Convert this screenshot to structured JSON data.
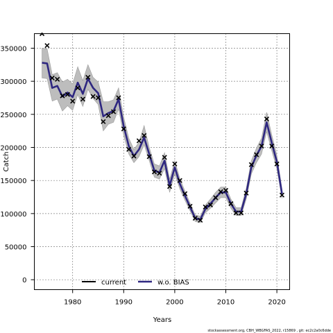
{
  "chart_data": {
    "type": "line",
    "xlabel": "Years",
    "ylabel": "Catch",
    "xlim": [
      1972.5,
      2022.5
    ],
    "ylim": [
      -15000,
      372000
    ],
    "xticks": [
      1980,
      1990,
      2000,
      2010,
      2020
    ],
    "yticks": [
      0,
      50000,
      100000,
      150000,
      200000,
      250000,
      300000,
      350000
    ],
    "grid": true,
    "legend_position": "bottom",
    "legend": [
      {
        "label": "current",
        "color": "#000000"
      },
      {
        "label": "w.o. BIAS",
        "color": "#2e2780"
      }
    ],
    "x": [
      1974,
      1975,
      1976,
      1977,
      1978,
      1979,
      1980,
      1981,
      1982,
      1983,
      1984,
      1985,
      1986,
      1987,
      1988,
      1989,
      1990,
      1991,
      1992,
      1993,
      1994,
      1995,
      1996,
      1997,
      1998,
      1999,
      2000,
      2001,
      2002,
      2003,
      2004,
      2005,
      2006,
      2007,
      2008,
      2009,
      2010,
      2011,
      2012,
      2013,
      2014,
      2015,
      2016,
      2017,
      2018,
      2019,
      2020,
      2021
    ],
    "observed": [
      372000,
      354000,
      305000,
      303000,
      278000,
      280000,
      270000,
      290000,
      273000,
      306000,
      277000,
      275000,
      239000,
      248000,
      254000,
      275000,
      228000,
      197000,
      187000,
      210000,
      218000,
      186000,
      163000,
      161000,
      185000,
      141000,
      175000,
      150000,
      130000,
      111000,
      93000,
      90000,
      110000,
      113000,
      124000,
      133000,
      135000,
      115000,
      101000,
      101000,
      131000,
      174000,
      189000,
      202000,
      243000,
      202000,
      175000,
      128000
    ],
    "series": [
      {
        "name": "w.o. BIAS",
        "color": "#2e2780",
        "values": [
          328000,
          327000,
          290000,
          293000,
          277000,
          283000,
          276000,
          298000,
          281000,
          304000,
          290000,
          282000,
          247000,
          252000,
          255000,
          273000,
          232000,
          202000,
          187000,
          197000,
          215000,
          190000,
          165000,
          162000,
          180000,
          142000,
          170000,
          145000,
          127000,
          110000,
          93000,
          91000,
          107000,
          115000,
          124000,
          132000,
          132000,
          115000,
          103000,
          103000,
          130000,
          170000,
          188000,
          202000,
          238000,
          207000,
          178000,
          130000
        ],
        "lower": [
          305000,
          304000,
          270000,
          273000,
          255000,
          263000,
          256000,
          280000,
          262000,
          288000,
          274000,
          265000,
          225000,
          235000,
          238000,
          258000,
          218000,
          190000,
          177000,
          186000,
          204000,
          180000,
          155000,
          152000,
          168000,
          132000,
          160000,
          137000,
          120000,
          104000,
          88000,
          86000,
          101000,
          108000,
          116000,
          124000,
          124000,
          108000,
          97000,
          97000,
          122000,
          160000,
          177000,
          190000,
          224000,
          195000,
          168000,
          123000
        ],
        "upper": [
          350000,
          349000,
          310000,
          313000,
          299000,
          303000,
          296000,
          322000,
          301000,
          325000,
          306000,
          299000,
          269000,
          269000,
          272000,
          290000,
          246000,
          214000,
          197000,
          208000,
          233000,
          200000,
          175000,
          172000,
          192000,
          152000,
          180000,
          153000,
          134000,
          116000,
          98000,
          96000,
          113000,
          122000,
          132000,
          140000,
          140000,
          122000,
          109000,
          109000,
          138000,
          180000,
          199000,
          214000,
          253000,
          219000,
          188000,
          137000
        ]
      }
    ]
  },
  "footer": "stockassessment.org, CBH_WBGFAS_2022, r15869 , git: ec2c2a0c6dde"
}
